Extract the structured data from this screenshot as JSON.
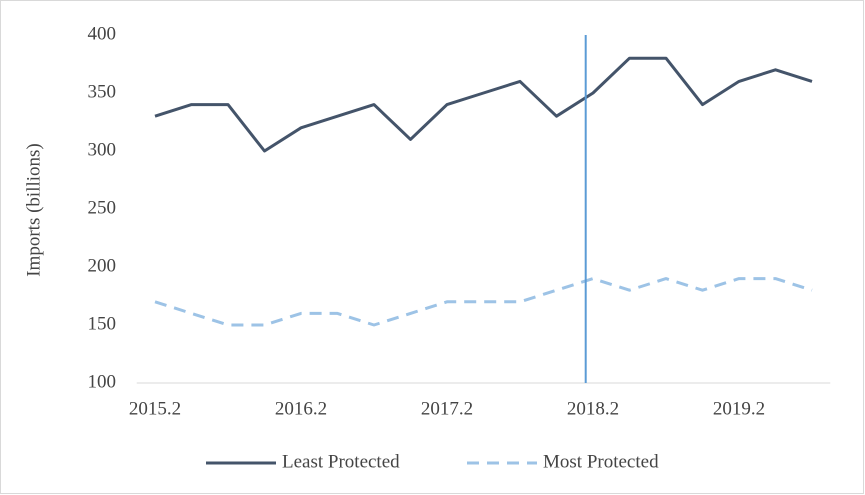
{
  "chart_data": {
    "type": "line",
    "y_label": "Imports (billions)",
    "categories": [
      "2015.2",
      null,
      null,
      null,
      "2016.2",
      null,
      null,
      null,
      "2017.2",
      null,
      null,
      null,
      "2018.2",
      null,
      null,
      null,
      "2019.2",
      null,
      null
    ],
    "series": [
      {
        "name": "Least Protected",
        "color": "#44546a",
        "dash": "solid",
        "values": [
          330,
          340,
          340,
          300,
          320,
          330,
          340,
          310,
          340,
          350,
          360,
          330,
          350,
          380,
          380,
          340,
          360,
          370,
          360
        ]
      },
      {
        "name": "Most Protected",
        "color": "#9dc3e6",
        "dash": "dashed",
        "values": [
          170,
          160,
          150,
          150,
          160,
          160,
          150,
          160,
          170,
          170,
          170,
          180,
          190,
          180,
          190,
          180,
          190,
          190,
          180
        ]
      }
    ],
    "ylim": [
      100,
      400
    ],
    "yticks": [
      100,
      150,
      200,
      250,
      300,
      350,
      400
    ],
    "grid": false,
    "vline": {
      "x": 11.8,
      "color": "#5b9bd5"
    },
    "legend": "bottom"
  }
}
